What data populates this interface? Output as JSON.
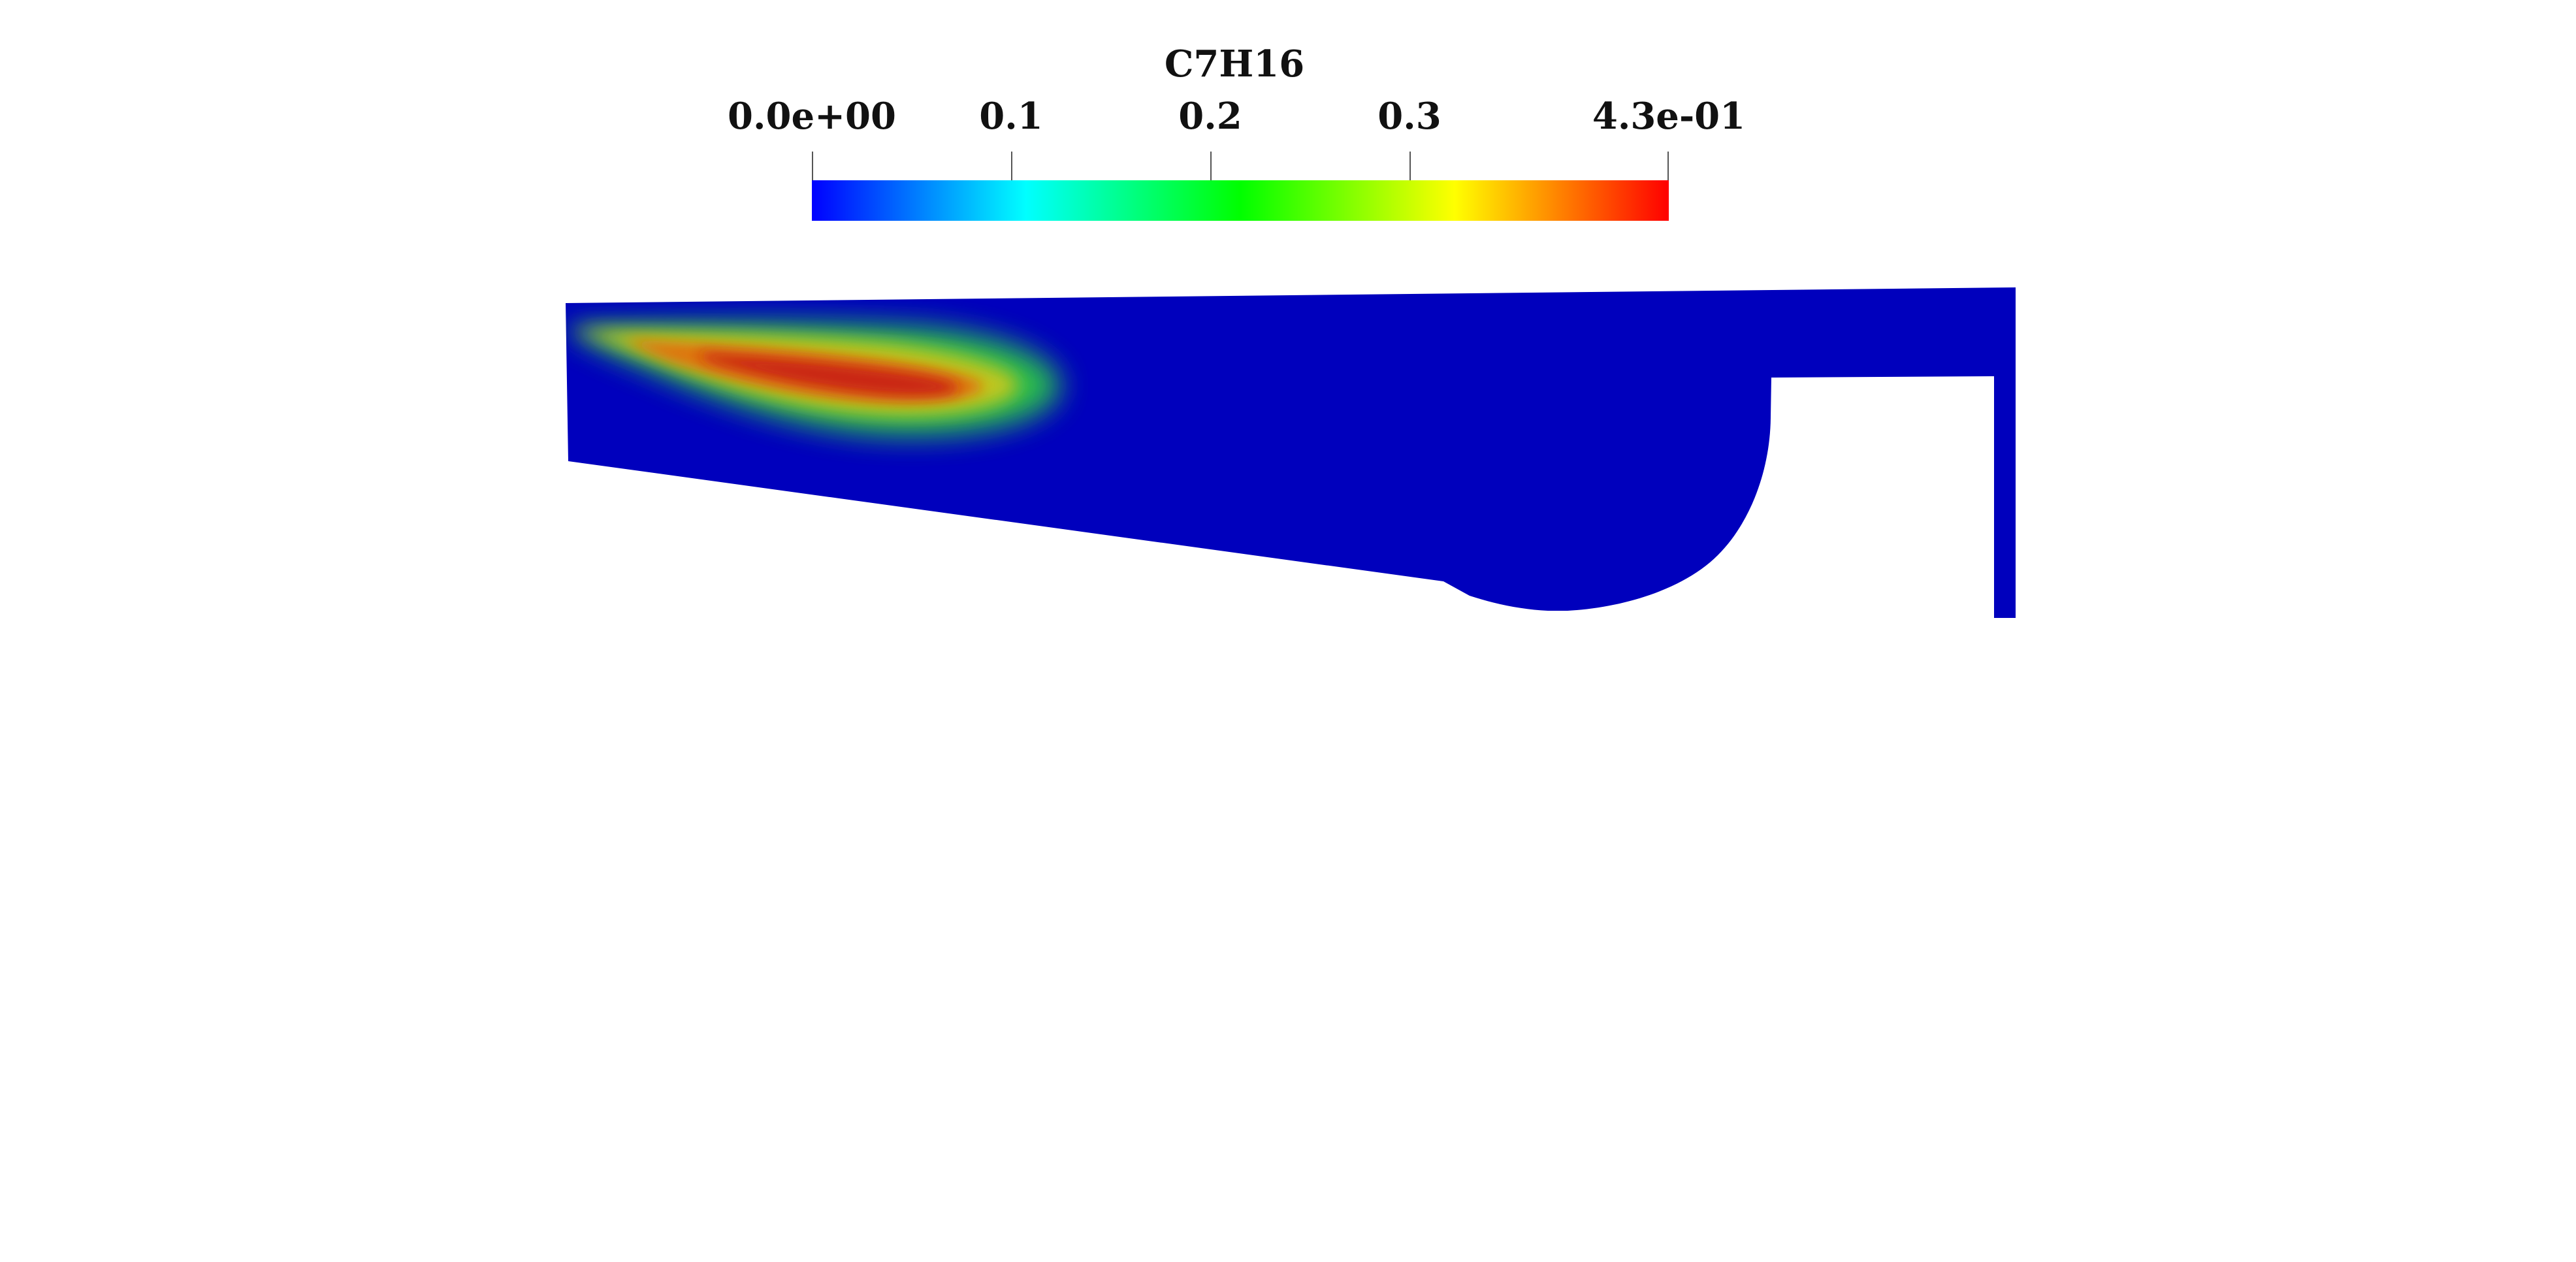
{
  "scalar_bar": {
    "title": "C7H16",
    "range": [
      0.0,
      0.43
    ],
    "ticks": [
      {
        "label": "0.0e+00",
        "value": 0.0
      },
      {
        "label": "0.1",
        "value": 0.1
      },
      {
        "label": "0.2",
        "value": 0.2
      },
      {
        "label": "0.3",
        "value": 0.3
      },
      {
        "label": "4.3e-01",
        "value": 0.43
      }
    ],
    "colormap": [
      "#0000ff",
      "#00ffff",
      "#00ff00",
      "#ffff00",
      "#ff0000"
    ]
  },
  "field": {
    "background_color": "#0000bd",
    "jet_colors": [
      "#2bc64a",
      "#c8c81a",
      "#e07010",
      "#c81e12"
    ]
  }
}
